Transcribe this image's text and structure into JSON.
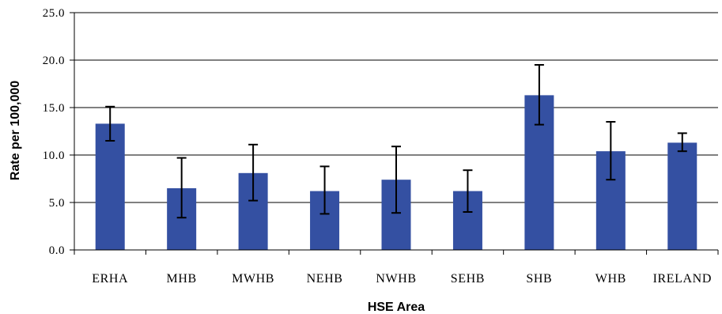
{
  "chart_data": {
    "type": "bar",
    "xlabel": "HSE Area",
    "ylabel": "Rate per 100,000",
    "ylim": [
      0,
      25
    ],
    "yticks": [
      0,
      5,
      10,
      15,
      20,
      25
    ],
    "ytick_labels": [
      "0.0",
      "5.0",
      "10.0",
      "15.0",
      "20.0",
      "25.0"
    ],
    "grid": true,
    "categories": [
      "ERHA",
      "MHB",
      "MWHB",
      "NEHB",
      "NWHB",
      "SEHB",
      "SHB",
      "WHB",
      "IRELAND"
    ],
    "values": [
      13.3,
      6.5,
      8.1,
      6.2,
      7.4,
      6.2,
      16.3,
      10.4,
      11.3
    ],
    "error_low": [
      11.5,
      3.4,
      5.2,
      3.8,
      3.9,
      4.0,
      13.2,
      7.4,
      10.4
    ],
    "error_high": [
      15.1,
      9.7,
      11.1,
      8.8,
      10.9,
      8.4,
      19.5,
      13.5,
      12.3
    ],
    "colors": {
      "bar": "#3450A2",
      "error": "#000000",
      "grid": "#000000"
    }
  }
}
